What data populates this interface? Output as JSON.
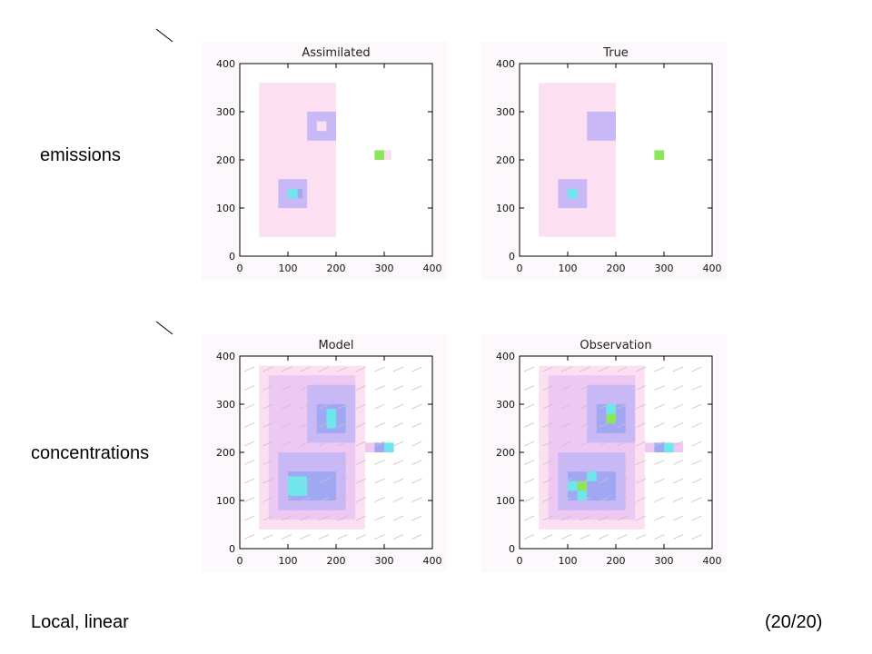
{
  "slide": {
    "label_emissions": "emissions",
    "label_concentrations": "concentrations",
    "label_method": "Local, linear",
    "label_page": "(20/20)"
  },
  "colors": {
    "background": "#ffffff",
    "panel_background": "#fcf8fb",
    "low": "#fce0f2",
    "mid_low": "#ecc8f2",
    "mid": "#c8b8f5",
    "medium": "#a0a8f4",
    "medium_high": "#6ee6ec",
    "high": "#8ce65a",
    "peak": "#f05020"
  },
  "chart_data": [
    {
      "type": "heatmap",
      "title": "Assimilated",
      "xlim": [
        0,
        400
      ],
      "ylim": [
        0,
        400
      ],
      "xticks": [
        "0",
        "100",
        "200",
        "300",
        "400"
      ],
      "yticks": [
        "0",
        "100",
        "200",
        "300",
        "400"
      ],
      "vectors": false,
      "cells": [
        {
          "x0": 40,
          "x1": 200,
          "y0": 40,
          "y1": 360,
          "level": 1
        },
        {
          "x0": 140,
          "x1": 200,
          "y0": 240,
          "y1": 300,
          "level": 3
        },
        {
          "x0": 160,
          "x1": 180,
          "y0": 260,
          "y1": 280,
          "level": 1
        },
        {
          "x0": 80,
          "x1": 140,
          "y0": 100,
          "y1": 160,
          "level": 3
        },
        {
          "x0": 100,
          "x1": 120,
          "y0": 120,
          "y1": 140,
          "level": 5
        },
        {
          "x0": 120,
          "x1": 130,
          "y0": 120,
          "y1": 140,
          "level": 4
        },
        {
          "x0": 280,
          "x1": 300,
          "y0": 200,
          "y1": 220,
          "level": 6
        },
        {
          "x0": 300,
          "x1": 315,
          "y0": 200,
          "y1": 220,
          "level": 1
        }
      ]
    },
    {
      "type": "heatmap",
      "title": "True",
      "xlim": [
        0,
        400
      ],
      "ylim": [
        0,
        400
      ],
      "xticks": [
        "0",
        "100",
        "200",
        "300",
        "400"
      ],
      "yticks": [
        "0",
        "100",
        "200",
        "300",
        "400"
      ],
      "vectors": false,
      "cells": [
        {
          "x0": 40,
          "x1": 200,
          "y0": 40,
          "y1": 360,
          "level": 1
        },
        {
          "x0": 140,
          "x1": 200,
          "y0": 240,
          "y1": 300,
          "level": 3
        },
        {
          "x0": 80,
          "x1": 140,
          "y0": 100,
          "y1": 160,
          "level": 3
        },
        {
          "x0": 100,
          "x1": 120,
          "y0": 120,
          "y1": 140,
          "level": 5
        },
        {
          "x0": 280,
          "x1": 300,
          "y0": 200,
          "y1": 220,
          "level": 6
        }
      ]
    },
    {
      "type": "heatmap",
      "title": "Model",
      "xlim": [
        0,
        400
      ],
      "ylim": [
        0,
        400
      ],
      "xticks": [
        "0",
        "100",
        "200",
        "300",
        "400"
      ],
      "yticks": [
        "0",
        "100",
        "200",
        "300",
        "400"
      ],
      "vectors": true,
      "cells": [
        {
          "x0": 40,
          "x1": 260,
          "y0": 40,
          "y1": 380,
          "level": 1
        },
        {
          "x0": 60,
          "x1": 240,
          "y0": 60,
          "y1": 360,
          "level": 2
        },
        {
          "x0": 80,
          "x1": 220,
          "y0": 80,
          "y1": 200,
          "level": 3
        },
        {
          "x0": 140,
          "x1": 240,
          "y0": 220,
          "y1": 340,
          "level": 3
        },
        {
          "x0": 100,
          "x1": 200,
          "y0": 100,
          "y1": 160,
          "level": 4
        },
        {
          "x0": 160,
          "x1": 220,
          "y0": 240,
          "y1": 300,
          "level": 4
        },
        {
          "x0": 100,
          "x1": 140,
          "y0": 110,
          "y1": 150,
          "level": 5
        },
        {
          "x0": 180,
          "x1": 200,
          "y0": 250,
          "y1": 290,
          "level": 5
        },
        {
          "x0": 260,
          "x1": 320,
          "y0": 200,
          "y1": 220,
          "level": 2
        },
        {
          "x0": 280,
          "x1": 300,
          "y0": 200,
          "y1": 220,
          "level": 4
        },
        {
          "x0": 300,
          "x1": 320,
          "y0": 200,
          "y1": 220,
          "level": 5
        }
      ]
    },
    {
      "type": "heatmap",
      "title": "Observation",
      "xlim": [
        0,
        400
      ],
      "ylim": [
        0,
        400
      ],
      "xticks": [
        "0",
        "100",
        "200",
        "300",
        "400"
      ],
      "yticks": [
        "0",
        "100",
        "200",
        "300",
        "400"
      ],
      "vectors": true,
      "cells": [
        {
          "x0": 40,
          "x1": 260,
          "y0": 40,
          "y1": 380,
          "level": 1
        },
        {
          "x0": 60,
          "x1": 240,
          "y0": 60,
          "y1": 360,
          "level": 2
        },
        {
          "x0": 80,
          "x1": 220,
          "y0": 80,
          "y1": 200,
          "level": 3
        },
        {
          "x0": 140,
          "x1": 240,
          "y0": 220,
          "y1": 340,
          "level": 3
        },
        {
          "x0": 100,
          "x1": 200,
          "y0": 100,
          "y1": 160,
          "level": 4
        },
        {
          "x0": 160,
          "x1": 220,
          "y0": 240,
          "y1": 300,
          "level": 4
        },
        {
          "x0": 100,
          "x1": 120,
          "y0": 120,
          "y1": 140,
          "level": 5
        },
        {
          "x0": 140,
          "x1": 160,
          "y0": 140,
          "y1": 160,
          "level": 5
        },
        {
          "x0": 120,
          "x1": 140,
          "y0": 120,
          "y1": 140,
          "level": 6
        },
        {
          "x0": 120,
          "x1": 140,
          "y0": 100,
          "y1": 120,
          "level": 5
        },
        {
          "x0": 180,
          "x1": 200,
          "y0": 260,
          "y1": 280,
          "level": 6
        },
        {
          "x0": 180,
          "x1": 200,
          "y0": 280,
          "y1": 300,
          "level": 5
        },
        {
          "x0": 260,
          "x1": 340,
          "y0": 200,
          "y1": 220,
          "level": 2
        },
        {
          "x0": 280,
          "x1": 300,
          "y0": 200,
          "y1": 220,
          "level": 4
        },
        {
          "x0": 300,
          "x1": 320,
          "y0": 200,
          "y1": 220,
          "level": 5
        }
      ]
    }
  ]
}
